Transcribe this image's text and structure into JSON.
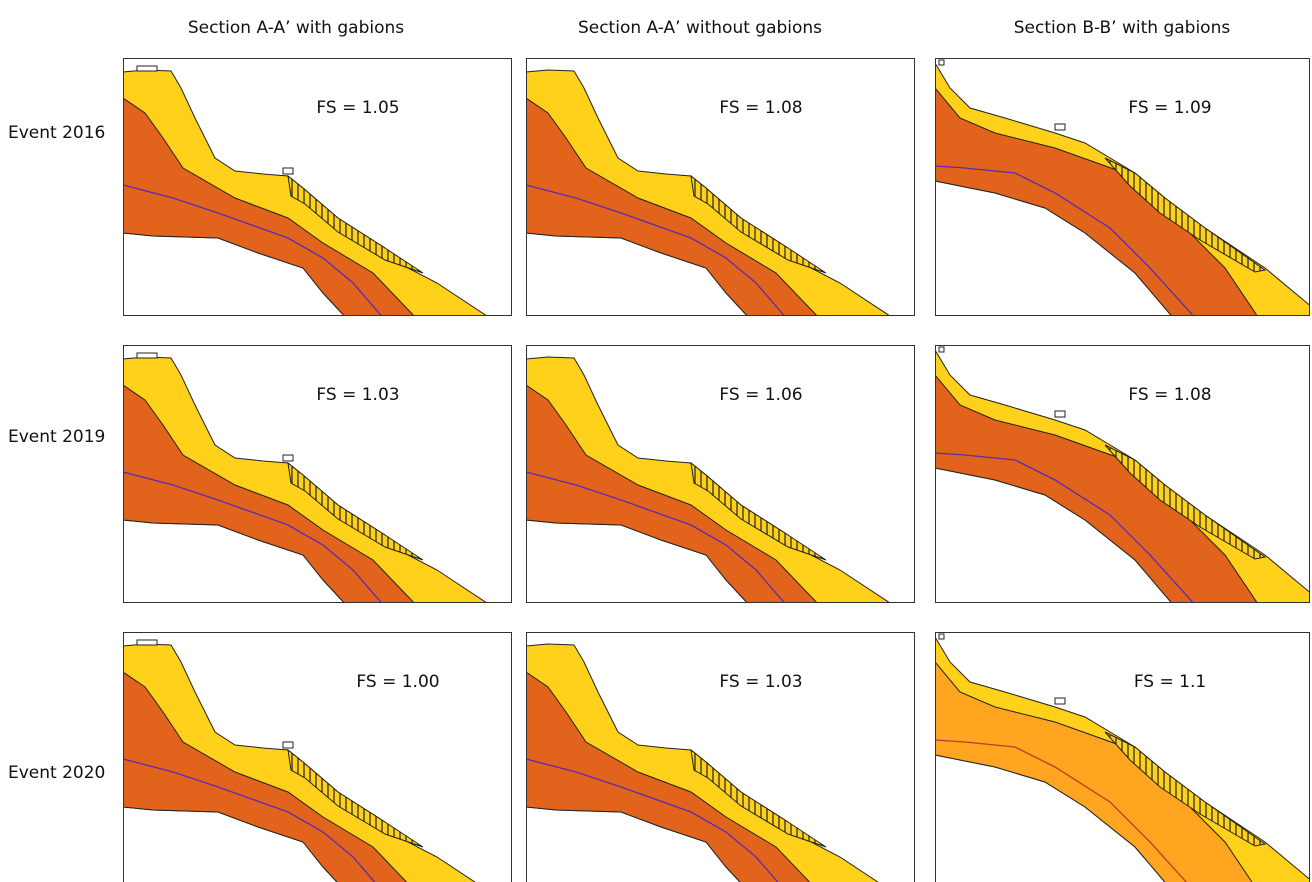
{
  "columns": [
    "Section A-A’ with gabions",
    "Section A-A’ without gabions",
    "Section B-B’ with gabions"
  ],
  "rows": [
    {
      "label": "Event 2016",
      "panels": [
        "FS = 1.05",
        "FS = 1.08",
        "FS = 1.09"
      ]
    },
    {
      "label": "Event 2019",
      "panels": [
        "FS = 1.03",
        "FS = 1.06",
        "FS = 1.08"
      ]
    },
    {
      "label": "Event 2020",
      "panels": [
        "FS = 1.00",
        "FS = 1.03",
        "FS = 1.1"
      ]
    }
  ]
}
